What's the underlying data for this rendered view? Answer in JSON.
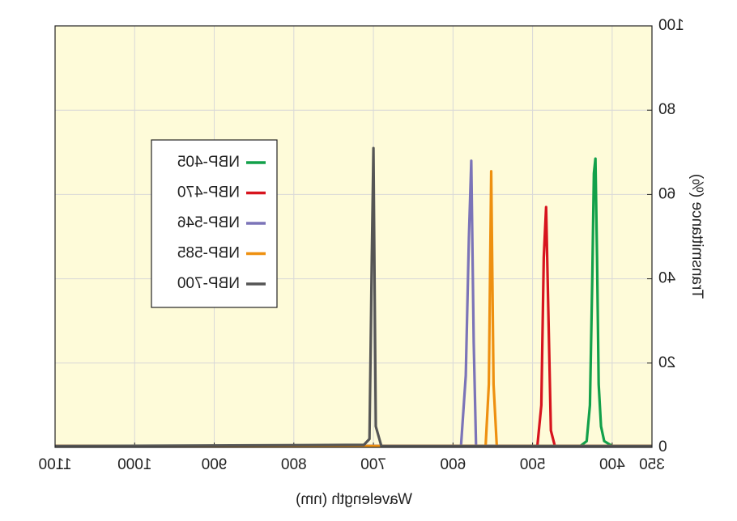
{
  "chart_data": {
    "type": "line",
    "xlabel": "Wavelength (nm)",
    "ylabel": "Transmittance (%)",
    "xlim": [
      350,
      1100
    ],
    "xticks": [
      350,
      400,
      500,
      600,
      700,
      800,
      900,
      1000,
      1100
    ],
    "ylim": [
      0,
      100
    ],
    "yticks": [
      0,
      20,
      40,
      60,
      80,
      100
    ],
    "grid": true,
    "mirrored": true,
    "series": [
      {
        "name": "NBP-405",
        "color": "#12a04a",
        "x": [
          350,
          400,
          410,
          414,
          417,
          419,
          421,
          423,
          425,
          428,
          432,
          440,
          1100
        ],
        "values": [
          0.3,
          0.3,
          1.5,
          5,
          15,
          45,
          68.5,
          65,
          40,
          10,
          1.5,
          0.3,
          0.3
        ]
      },
      {
        "name": "NBP-470",
        "color": "#d7141e",
        "x": [
          350,
          472,
          477,
          480,
          483,
          486,
          489,
          494,
          1100
        ],
        "values": [
          0.3,
          0.3,
          4,
          30,
          57,
          45,
          10,
          0.3,
          0.3
        ]
      },
      {
        "name": "NBP-546",
        "color": "#7b74b8",
        "x": [
          350,
          571,
          574,
          577,
          580,
          584,
          590,
          1100
        ],
        "values": [
          0.3,
          0.3,
          25,
          68,
          50,
          17,
          0.3,
          0.3
        ]
      },
      {
        "name": "NBP-585",
        "color": "#ee9010",
        "x": [
          350,
          545,
          549,
          552,
          555,
          559,
          1100
        ],
        "values": [
          0.3,
          0.3,
          15,
          65.5,
          15,
          0.3,
          0.3
        ]
      },
      {
        "name": "NBP-700",
        "color": "#555555",
        "x": [
          350,
          690,
          697,
          700,
          702,
          705,
          712,
          1100
        ],
        "values": [
          0.3,
          0.3,
          5,
          71,
          45,
          2,
          0.6,
          0.3
        ]
      }
    ]
  }
}
